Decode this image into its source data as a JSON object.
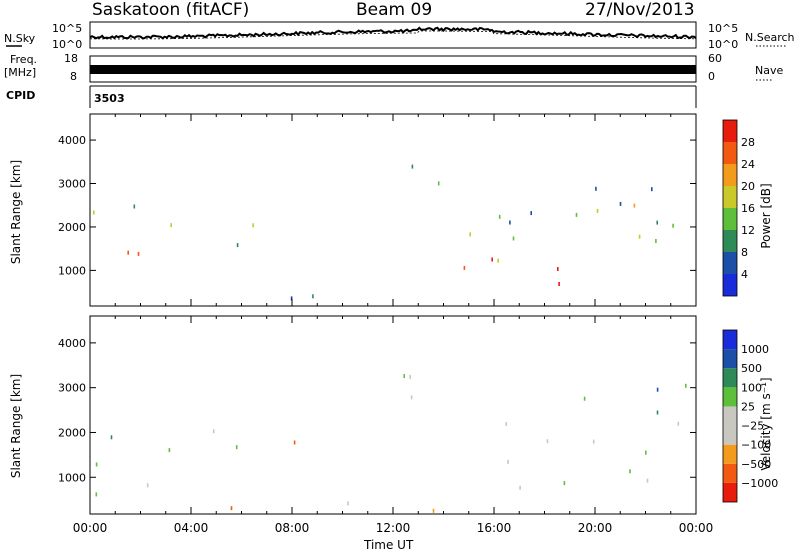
{
  "header": {
    "station": "Saskatoon (fitACF)",
    "beam": "Beam 09",
    "date": "27/Nov/2013"
  },
  "left_labels": {
    "nsky": "N.Sky",
    "freq": "Freq.",
    "mhz": "[MHz]",
    "cpid": "CPID"
  },
  "right_labels": {
    "nsearch": "N.Search",
    "nave": "Nave"
  },
  "noise_axis": {
    "left_top": "10^5",
    "left_bottom": "10^0",
    "right_top": "10^5",
    "right_bottom": "10^0"
  },
  "freq_axis": {
    "left_top": "18",
    "left_bottom": "8",
    "right_top": "60",
    "right_bottom": "0"
  },
  "cpid_value": "3503",
  "colors": {
    "power": [
      "#1a2bd9",
      "#1b4fa8",
      "#2e8b57",
      "#5dbf3a",
      "#c9c92a",
      "#f29b1c",
      "#f15a10",
      "#e81c0c"
    ],
    "velocity": [
      "#e81c0c",
      "#f15a10",
      "#f29b1c",
      "#c8c8c0",
      "#c8c8c0",
      "#5dbf3a",
      "#2e8b57",
      "#1b4fa8",
      "#1a2bd9"
    ]
  },
  "chart_data": [
    {
      "type": "heatmap",
      "panel": "power",
      "xlabel": "",
      "ylabel": "Slant Range [km]",
      "x_ticks": [
        "00:00",
        "04:00",
        "08:00",
        "12:00",
        "16:00",
        "20:00",
        "00:00"
      ],
      "xlim_hours": [
        0,
        24
      ],
      "y_ticks": [
        1000,
        2000,
        3000,
        4000
      ],
      "ylim": [
        180,
        4600
      ],
      "colorbar_label": "Power [dB]",
      "colorbar_ticks": [
        "28",
        "24",
        "20",
        "16",
        "12",
        "8",
        "4"
      ],
      "regions": [
        {
          "t0": 0.0,
          "t1": 2.8,
          "r0": 900,
          "r1": 2000,
          "level": 5
        },
        {
          "t0": 0.0,
          "t1": 2.4,
          "r0": 2200,
          "r1": 3300,
          "level": 3
        },
        {
          "t0": 2.5,
          "t1": 9.2,
          "r0": 1400,
          "r1": 2100,
          "level": 3
        },
        {
          "t0": 0.5,
          "t1": 12.0,
          "r0": 200,
          "r1": 500,
          "level": 1
        },
        {
          "t0": 11.0,
          "t1": 14.5,
          "r0": 2800,
          "r1": 3500,
          "level": 2
        },
        {
          "t0": 14.5,
          "t1": 23.6,
          "r0": 700,
          "r1": 1300,
          "level": 7
        },
        {
          "t0": 14.8,
          "t1": 23.6,
          "r0": 1200,
          "r1": 2000,
          "level": 4
        },
        {
          "t0": 15.0,
          "t1": 23.8,
          "r0": 2000,
          "r1": 3400,
          "level": 2
        },
        {
          "t0": 20.0,
          "t1": 24.0,
          "r0": 2200,
          "r1": 3000,
          "level": 5
        }
      ]
    },
    {
      "type": "heatmap",
      "panel": "velocity",
      "xlabel": "Time UT",
      "ylabel": "Slant Range [km]",
      "x_ticks": [
        "00:00",
        "04:00",
        "08:00",
        "12:00",
        "16:00",
        "20:00",
        "00:00"
      ],
      "xlim_hours": [
        0,
        24
      ],
      "y_ticks": [
        1000,
        2000,
        3000,
        4000
      ],
      "ylim": [
        180,
        4600
      ],
      "colorbar_label": "Velocity [m s⁻¹]",
      "colorbar_ticks": [
        "1000",
        "500",
        "100",
        "25",
        "−25",
        "−100",
        "−500",
        "−1000"
      ],
      "regions": [
        {
          "t0": 0.0,
          "t1": 2.8,
          "r0": 600,
          "r1": 2000,
          "level": 4
        },
        {
          "t0": 0.3,
          "t1": 2.6,
          "r0": 1200,
          "r1": 2000,
          "level": 5
        },
        {
          "t0": 2.5,
          "t1": 9.2,
          "r0": 1400,
          "r1": 2100,
          "level": 5
        },
        {
          "t0": 6.0,
          "t1": 9.2,
          "r0": 1500,
          "r1": 2100,
          "level": 2
        },
        {
          "t0": 4.0,
          "t1": 15.0,
          "r0": 180,
          "r1": 500,
          "level": 2
        },
        {
          "t0": 11.0,
          "t1": 14.5,
          "r0": 2400,
          "r1": 3500,
          "level": 4
        },
        {
          "t0": 14.5,
          "t1": 23.6,
          "r0": 700,
          "r1": 2300,
          "level": 4
        },
        {
          "t0": 18.0,
          "t1": 24.0,
          "r0": 2400,
          "r1": 3300,
          "level": 6
        }
      ]
    }
  ]
}
